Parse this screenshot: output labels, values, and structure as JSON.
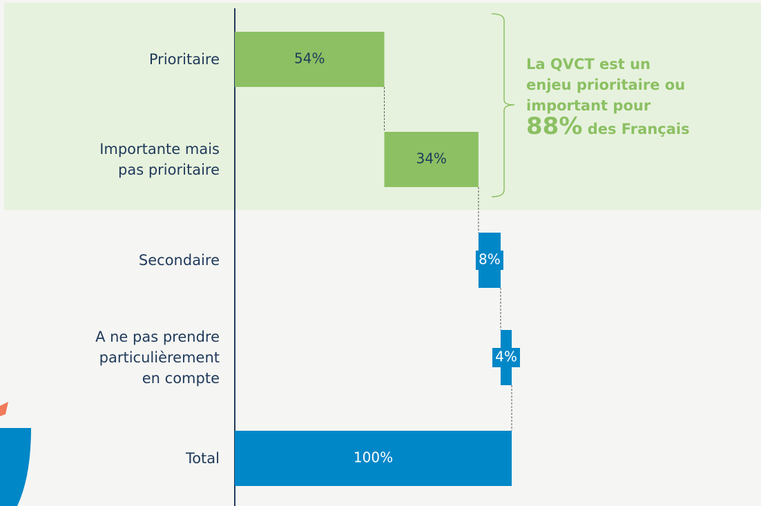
{
  "chart_data": {
    "type": "waterfall",
    "categories": [
      "Prioritaire",
      "Importante mais\npas prioritaire",
      "Secondaire",
      "A ne pas prendre\nparticulièrement\nen compte",
      "Total"
    ],
    "values": [
      54,
      34,
      8,
      4,
      100
    ],
    "value_labels": [
      "54%",
      "34%",
      "8%",
      "4%",
      "100%"
    ],
    "colors": [
      "#8cc063",
      "#8cc063",
      "#0087c8",
      "#0087c8",
      "#0087c8"
    ],
    "annotation": {
      "text": "La QVCT est un\nenjeu prioritaire ou\nimportant pour",
      "highlight": "88%",
      "suffix": "des Français",
      "color": "#8cc063"
    }
  }
}
